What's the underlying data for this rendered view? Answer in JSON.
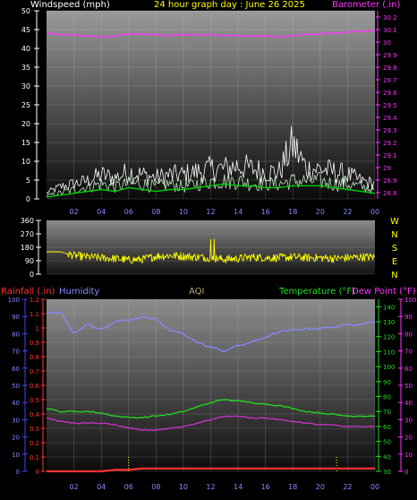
{
  "title": "24 hour graph day : June 26 2025",
  "colors": {
    "wind": "#ffffff",
    "wind_avg": "#00cc00",
    "barometer": "#ff33ff",
    "direction": "#ffff00",
    "rainfall": "#ff3333",
    "humidity": "#8888ff",
    "temperature": "#22dd22",
    "dewpoint": "#cc33cc",
    "aqi": "#b8a878",
    "accent_blue": "#4444ff"
  },
  "labels": {
    "windspeed": "Windspeed (mph)",
    "barometer": "Barometer (.in)",
    "rainfall": "Rainfall (.in)",
    "humidity": "Humidity",
    "aqi": "AQI",
    "temperature": "Temperature (°F)",
    "dewpoint": "Dew Point (°F)"
  },
  "chart_data": [
    {
      "type": "line",
      "name": "wind-baro",
      "title": "24 hour graph day : June 26 2025",
      "x_ticks": [
        "02",
        "04",
        "06",
        "08",
        "10",
        "12",
        "14",
        "16",
        "18",
        "20",
        "22",
        "00"
      ],
      "xlim": [
        0,
        24
      ],
      "left_axis": {
        "label": "Windspeed (mph)",
        "ticks": [
          0,
          5,
          10,
          15,
          20,
          25,
          30,
          35,
          40,
          45,
          50
        ],
        "ylim": [
          0,
          50
        ]
      },
      "right_axis": {
        "label": "Barometer (.in)",
        "ticks": [
          "28.8",
          "28.9",
          "29",
          "29.1",
          "29.2",
          "29.3",
          "29.4",
          "29.5",
          "29.6",
          "29.7",
          "29.8",
          "29.9",
          "30",
          "30.1",
          "30.2"
        ],
        "ylim": [
          28.75,
          30.25
        ]
      },
      "series": [
        {
          "name": "Barometer (.in)",
          "axis": "right",
          "x": [
            0,
            1,
            2,
            3,
            4,
            5,
            6,
            7,
            8,
            9,
            10,
            11,
            12,
            13,
            14,
            15,
            16,
            17,
            18,
            19,
            20,
            21,
            22,
            23,
            24
          ],
          "y": [
            30.07,
            30.06,
            30.06,
            30.05,
            30.04,
            30.05,
            30.07,
            30.06,
            30.06,
            30.05,
            30.06,
            30.06,
            30.06,
            30.05,
            30.05,
            30.05,
            30.05,
            30.04,
            30.05,
            30.06,
            30.07,
            30.07,
            30.08,
            30.09,
            30.09
          ]
        },
        {
          "name": "Windspeed (mph)",
          "axis": "left",
          "x": [
            0,
            1,
            2,
            3,
            4,
            5,
            6,
            7,
            8,
            9,
            10,
            11,
            12,
            13,
            14,
            15,
            16,
            17,
            18,
            19,
            20,
            21,
            22,
            23,
            24
          ],
          "y": [
            1,
            2,
            3,
            4,
            5,
            4,
            5,
            5,
            4,
            5,
            4,
            5,
            6,
            6,
            6,
            5,
            5,
            5,
            6,
            6,
            6,
            5,
            5,
            4,
            3
          ]
        },
        {
          "name": "Wind gust",
          "x": [
            0,
            1,
            2,
            3,
            4,
            5,
            6,
            7,
            8,
            9,
            10,
            11,
            12,
            13,
            14,
            15,
            16,
            17,
            18,
            19,
            20,
            21,
            22,
            23,
            24
          ],
          "y": [
            2,
            4,
            5,
            6,
            8,
            7,
            9,
            8,
            7,
            8,
            8,
            9,
            10,
            10,
            11,
            10,
            9,
            9,
            18,
            10,
            10,
            9,
            8,
            6,
            5
          ]
        },
        {
          "name": "Wind average",
          "x": [
            0,
            1,
            2,
            3,
            4,
            5,
            6,
            7,
            8,
            9,
            10,
            11,
            12,
            13,
            14,
            15,
            16,
            17,
            18,
            19,
            20,
            21,
            22,
            23,
            24
          ],
          "y": [
            0.5,
            1,
            1.5,
            2,
            2.5,
            2,
            3,
            2.5,
            2,
            2.5,
            2.5,
            3,
            3.5,
            4,
            3.5,
            3.5,
            3,
            3,
            3.5,
            3.5,
            3.5,
            3,
            2.5,
            2,
            1.5
          ]
        }
      ]
    },
    {
      "type": "line",
      "name": "wind-direction",
      "xlim": [
        0,
        24
      ],
      "left_axis": {
        "ticks": [
          0,
          90,
          180,
          270,
          360
        ],
        "ylim": [
          0,
          360
        ]
      },
      "compass": [
        "W",
        "N",
        "S",
        "E",
        "N"
      ],
      "series": [
        {
          "name": "Wind direction",
          "x": [
            0,
            1,
            2,
            3,
            4,
            5,
            6,
            7,
            8,
            9,
            10,
            11,
            12,
            13,
            14,
            15,
            16,
            17,
            18,
            19,
            20,
            21,
            22,
            23,
            24
          ],
          "y": [
            150,
            150,
            125,
            115,
            110,
            105,
            95,
            100,
            120,
            125,
            120,
            115,
            110,
            100,
            105,
            115,
            110,
            110,
            115,
            110,
            110,
            105,
            110,
            115,
            115
          ]
        }
      ]
    },
    {
      "type": "line",
      "name": "rain-humidity-temp",
      "x_ticks": [
        "02",
        "04",
        "06",
        "08",
        "10",
        "12",
        "14",
        "16",
        "18",
        "20",
        "22",
        "00"
      ],
      "xlim": [
        0,
        24
      ],
      "rain_axis": {
        "label": "Rainfall (.in)",
        "ticks": [
          "0",
          "0.1",
          "0.2",
          "0.3",
          "0.4",
          "0.5",
          "0.6",
          "0.7",
          "0.8",
          "0.9",
          "1",
          "1.1",
          "1.2"
        ],
        "ylim": [
          0,
          1.2
        ]
      },
      "humidity_axis": {
        "label": "Humidity",
        "ticks": [
          0,
          10,
          20,
          30,
          40,
          50,
          60,
          70,
          80,
          90,
          100
        ],
        "ylim": [
          0,
          100
        ]
      },
      "temp_axis": {
        "label": "Temperature (°F)",
        "ticks": [
          30,
          40,
          50,
          60,
          70,
          80,
          90,
          100,
          110,
          120,
          130,
          140
        ],
        "ylim": [
          30,
          145
        ]
      },
      "dew_axis": {
        "label": "Dew Point (°F)",
        "ticks": [
          0,
          10,
          20,
          30,
          40,
          50,
          60,
          70,
          80,
          90,
          100
        ],
        "ylim": [
          0,
          100
        ]
      },
      "series": [
        {
          "name": "Humidity",
          "axis": "humidity",
          "x": [
            0,
            1,
            2,
            3,
            4,
            5,
            6,
            7,
            8,
            9,
            10,
            11,
            12,
            13,
            14,
            15,
            16,
            17,
            18,
            19,
            20,
            21,
            22,
            23,
            24
          ],
          "y": [
            92,
            93,
            80,
            86,
            82,
            87,
            88,
            90,
            88,
            82,
            80,
            75,
            72,
            70,
            73,
            75,
            78,
            81,
            82,
            83,
            83,
            84,
            85,
            86,
            87
          ]
        },
        {
          "name": "Temperature (°F)",
          "axis": "temp",
          "x": [
            0,
            1,
            2,
            3,
            4,
            5,
            6,
            7,
            8,
            9,
            10,
            11,
            12,
            13,
            14,
            15,
            16,
            17,
            18,
            19,
            20,
            21,
            22,
            23,
            24
          ],
          "y": [
            72,
            70,
            70,
            70,
            69,
            67,
            66,
            66,
            67,
            68,
            70,
            73,
            76,
            78,
            77,
            76,
            75,
            74,
            72,
            70,
            69,
            68,
            67,
            67,
            67
          ]
        },
        {
          "name": "Dew Point (°F)",
          "axis": "dew",
          "x": [
            0,
            1,
            2,
            3,
            4,
            5,
            6,
            7,
            8,
            9,
            10,
            11,
            12,
            13,
            14,
            15,
            16,
            17,
            18,
            19,
            20,
            21,
            22,
            23,
            24
          ],
          "y": [
            31,
            29,
            28,
            28,
            28,
            27,
            25,
            24,
            24,
            25,
            26,
            28,
            30,
            32,
            32,
            31,
            31,
            30,
            29,
            28,
            27,
            27,
            26,
            26,
            26
          ]
        },
        {
          "name": "Rainfall (.in)",
          "axis": "rain",
          "x": [
            0,
            1,
            2,
            3,
            4,
            5,
            6,
            7,
            8,
            9,
            10,
            11,
            12,
            13,
            14,
            15,
            16,
            17,
            18,
            19,
            20,
            21,
            22,
            23,
            24
          ],
          "y": [
            0,
            0,
            0,
            0,
            0,
            0.01,
            0.01,
            0.02,
            0.02,
            0.02,
            0.02,
            0.02,
            0.02,
            0.02,
            0.02,
            0.02,
            0.02,
            0.02,
            0.02,
            0.02,
            0.02,
            0.02,
            0.02,
            0.02,
            0.02
          ]
        }
      ]
    }
  ]
}
